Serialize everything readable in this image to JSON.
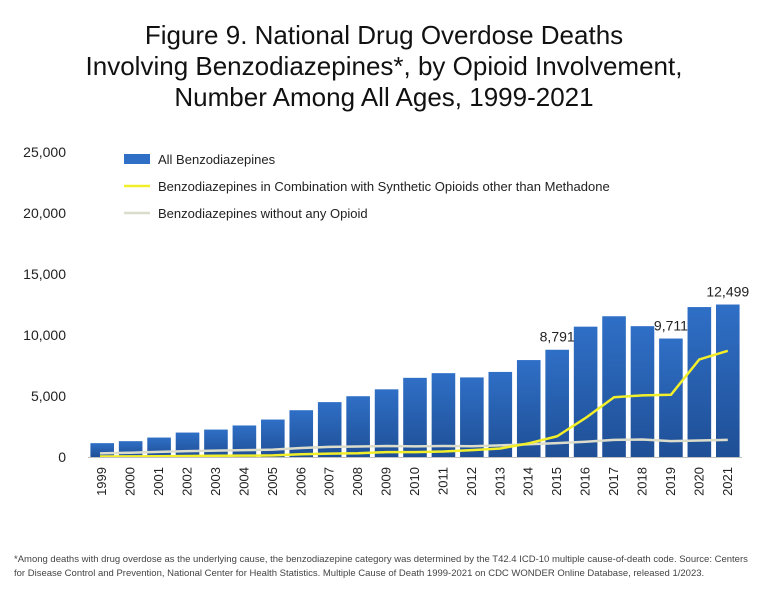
{
  "title_lines": [
    "Figure 9. National Drug Overdose Deaths",
    "Involving Benzodiazepines*, by Opioid Involvement,",
    "Number Among All Ages, 1999-2021"
  ],
  "footnote": "*Among deaths with drug overdose as the underlying cause, the benzodiazepine category was determined by the T42.4 ICD-10 multiple cause-of-death code. Source: Centers for Disease Control and Prevention, National Center for Health Statistics. Multiple Cause of Death 1999-2021 on CDC WONDER Online Database, released 1/2023.",
  "colors": {
    "bar": "#2f6fc6",
    "bar_dark": "#1f4f96",
    "line_synthetic": "#f2ef2a",
    "line_without": "#dcdccb"
  },
  "chart_data": {
    "type": "bar",
    "categories": [
      "1999",
      "2000",
      "2001",
      "2002",
      "2003",
      "2004",
      "2005",
      "2006",
      "2007",
      "2008",
      "2009",
      "2010",
      "2011",
      "2012",
      "2013",
      "2014",
      "2015",
      "2016",
      "2017",
      "2018",
      "2019",
      "2020",
      "2021"
    ],
    "ylim": [
      0,
      25000
    ],
    "yticks": [
      "0",
      "5,000",
      "10,000",
      "15,000",
      "20,000",
      "25,000"
    ],
    "ytick_values": [
      0,
      5000,
      10000,
      15000,
      20000,
      25000
    ],
    "legend_position": "top-left",
    "grid": false,
    "series": [
      {
        "name": "All Benzodiazepines",
        "kind": "bar",
        "values": [
          1135,
          1298,
          1594,
          2004,
          2248,
          2585,
          3071,
          3835,
          4498,
          4981,
          5547,
          6489,
          6872,
          6524,
          6973,
          7945,
          8791,
          10684,
          11537,
          10724,
          9711,
          12290,
          12499
        ]
      },
      {
        "name": "Benzodiazepines in Combination with Synthetic Opioids other than Methadone",
        "kind": "line",
        "values": [
          40,
          50,
          60,
          80,
          100,
          110,
          130,
          230,
          280,
          310,
          400,
          400,
          450,
          560,
          700,
          1120,
          1700,
          3200,
          4900,
          5050,
          5100,
          8000,
          8700
        ]
      },
      {
        "name": "Benzodiazepines without any Opioid",
        "kind": "line",
        "values": [
          300,
          350,
          420,
          480,
          520,
          560,
          600,
          740,
          830,
          860,
          900,
          870,
          900,
          880,
          950,
          1050,
          1140,
          1250,
          1400,
          1430,
          1300,
          1350,
          1400
        ]
      }
    ],
    "data_labels": [
      {
        "category": "2015",
        "text": "8,791"
      },
      {
        "category": "2019",
        "text": "9,711"
      },
      {
        "category": "2021",
        "text": "12,499"
      }
    ]
  }
}
